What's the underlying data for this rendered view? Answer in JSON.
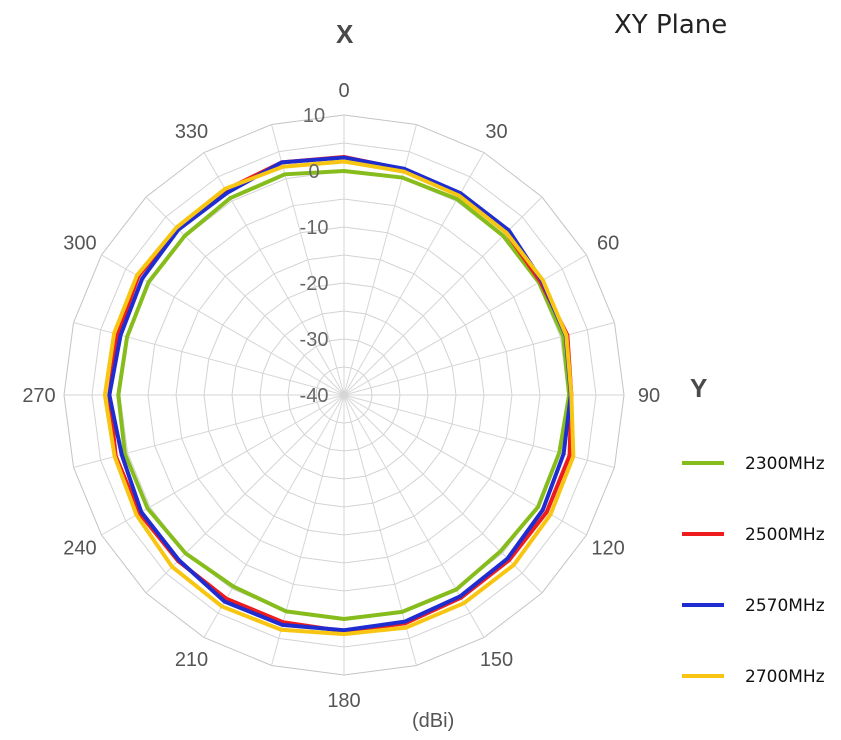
{
  "chart_data": {
    "type": "polar-line",
    "title": "XY Plane",
    "axis_labels": {
      "top": "X",
      "right": "Y"
    },
    "unit_label": "(dBi)",
    "radial_range": [
      -40,
      10
    ],
    "radial_ticks": [
      {
        "value": 10,
        "label": "10"
      },
      {
        "value": 0,
        "label": "0"
      },
      {
        "value": -10,
        "label": "-10"
      },
      {
        "value": -20,
        "label": "-20"
      },
      {
        "value": -30,
        "label": "-30"
      },
      {
        "value": -40,
        "label": "-40"
      }
    ],
    "angle_ticks": [
      {
        "value": 0,
        "label": "0"
      },
      {
        "value": 30,
        "label": "30"
      },
      {
        "value": 60,
        "label": "60"
      },
      {
        "value": 90,
        "label": "90"
      },
      {
        "value": 120,
        "label": "120"
      },
      {
        "value": 150,
        "label": "150"
      },
      {
        "value": 180,
        "label": "180"
      },
      {
        "value": 210,
        "label": "210"
      },
      {
        "value": 240,
        "label": "240"
      },
      {
        "value": 270,
        "label": "270"
      },
      {
        "value": 300,
        "label": "300"
      },
      {
        "value": 330,
        "label": "330"
      }
    ],
    "angle_step": 15,
    "grid": true,
    "legend_position": "right",
    "angles": [
      0,
      15,
      30,
      45,
      60,
      75,
      90,
      105,
      120,
      135,
      150,
      165,
      180,
      195,
      210,
      225,
      240,
      255,
      270,
      285,
      300,
      315,
      330,
      345
    ],
    "series": [
      {
        "name": "2300MHz",
        "color": "#86bc1c",
        "values": [
          0,
          0.2,
          0.4,
          0.2,
          0.2,
          0.5,
          0.2,
          -0.2,
          0,
          -0.5,
          0.1,
          0.1,
          0,
          0,
          -0.5,
          0,
          0.5,
          0.5,
          0.3,
          0.1,
          0.3,
          0.2,
          0.6,
          0.8
        ]
      },
      {
        "name": "2500MHz",
        "color": "#ee1c1c",
        "values": [
          2.5,
          1.7,
          1.4,
          1.0,
          0.5,
          1.3,
          0.6,
          1.7,
          1.8,
          1.7,
          1.8,
          2.2,
          2.2,
          2.0,
          2.0,
          1.9,
          2.2,
          2.2,
          1.9,
          1.9,
          2.4,
          2.2,
          2.3,
          3.0
        ]
      },
      {
        "name": "2570MHz",
        "color": "#1f2cd0",
        "values": [
          2.4,
          1.8,
          1.6,
          1.6,
          0.8,
          1.0,
          0.5,
          0.6,
          1.0,
          1.3,
          1.5,
          1.9,
          2.0,
          2.5,
          2.6,
          1.7,
          1.8,
          1.1,
          1.9,
          1.3,
          1.6,
          1.8,
          1.7,
          3.0
        ]
      },
      {
        "name": "2700MHz",
        "color": "#f8c612",
        "values": [
          1.7,
          1.3,
          1.1,
          1.0,
          1.0,
          1.1,
          0.6,
          2.4,
          2.6,
          2.9,
          2.9,
          3.0,
          2.7,
          3.4,
          3.6,
          3.4,
          2.8,
          2.4,
          2.7,
          2.5,
          2.7,
          2.3,
          2.5,
          2.2
        ]
      }
    ]
  }
}
